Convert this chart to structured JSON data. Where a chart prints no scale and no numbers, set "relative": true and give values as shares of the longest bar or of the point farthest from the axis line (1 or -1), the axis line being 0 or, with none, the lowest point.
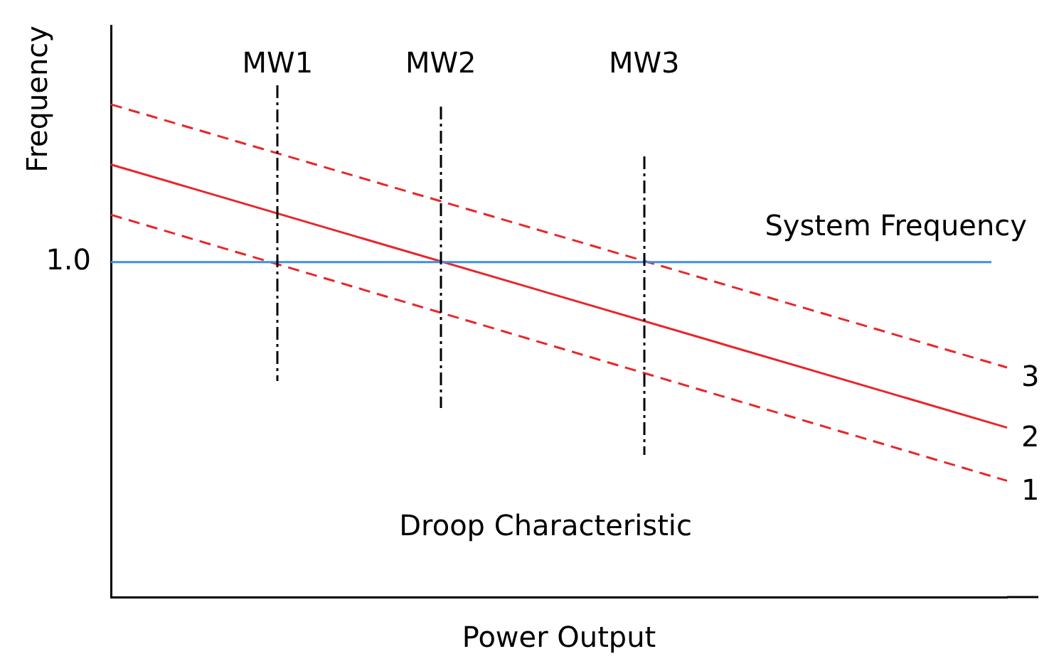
{
  "chart_data": {
    "type": "line",
    "relative": true,
    "xlabel": "Power Output",
    "ylabel": "Frequency",
    "categories": [
      null,
      null
    ],
    "tick_labels": false,
    "grid": false,
    "legend": false,
    "marker": "none",
    "series": [
      {
        "name": "3",
        "color": "#e8262a",
        "values": [
          1,
          0.466
        ],
        "line_style": "dashed"
      },
      {
        "name": "2",
        "color": "#e8262a",
        "values": [
          0.878,
          0.344
        ],
        "line_style": "solid"
      },
      {
        "name": "1",
        "color": "#e8262a",
        "values": [
          0.776,
          0.236
        ],
        "line_style": "dashed"
      }
    ],
    "ref_lines": [
      {
        "axis": "y",
        "value": 0.68,
        "label": "System Frequency",
        "color": "#3c8ee8",
        "line_style": "solid"
      }
    ],
    "annotations": [
      "1.0",
      "Droop Characteristic",
      "MW1",
      "MW2",
      "MW3"
    ]
  }
}
